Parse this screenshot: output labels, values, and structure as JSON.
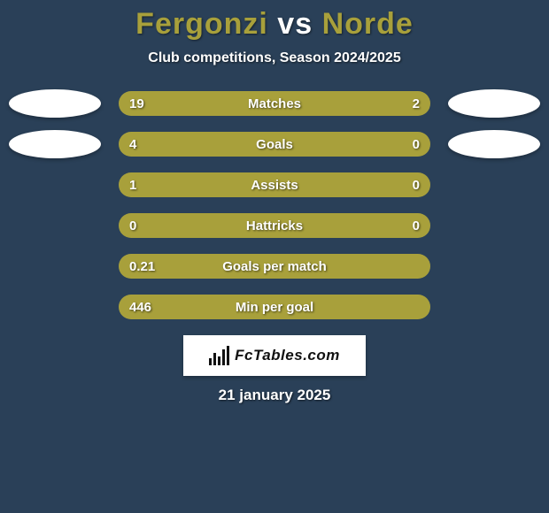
{
  "title": {
    "player1": "Fergonzi",
    "vs": "vs",
    "player2": "Norde",
    "player1_color": "#a8a03b",
    "player2_color": "#a8a03b"
  },
  "subtitle": "Club competitions, Season 2024/2025",
  "background_color": "#2a4058",
  "track_color": "#3a5068",
  "logo_text": "FcTables.com",
  "date": "21 january 2025",
  "stats": [
    {
      "label": "Matches",
      "left_value": "19",
      "right_value": "2",
      "left_pct": 76,
      "right_pct": 24,
      "left_color": "#a8a03b",
      "right_color": "#a8a03b",
      "show_oval": true
    },
    {
      "label": "Goals",
      "left_value": "4",
      "right_value": "0",
      "left_pct": 90,
      "right_pct": 10,
      "left_color": "#a8a03b",
      "right_color": "#a8a03b",
      "show_oval": true
    },
    {
      "label": "Assists",
      "left_value": "1",
      "right_value": "0",
      "left_pct": 80,
      "right_pct": 20,
      "left_color": "#a8a03b",
      "right_color": "#a8a03b",
      "show_oval": false
    },
    {
      "label": "Hattricks",
      "left_value": "0",
      "right_value": "0",
      "left_pct": 50,
      "right_pct": 50,
      "left_color": "#a8a03b",
      "right_color": "#a8a03b",
      "show_oval": false
    },
    {
      "label": "Goals per match",
      "left_value": "0.21",
      "right_value": "",
      "left_pct": 100,
      "right_pct": 0,
      "left_color": "#a8a03b",
      "right_color": "#a8a03b",
      "show_oval": false
    },
    {
      "label": "Min per goal",
      "left_value": "446",
      "right_value": "",
      "left_pct": 100,
      "right_pct": 0,
      "left_color": "#a8a03b",
      "right_color": "#a8a03b",
      "show_oval": false
    }
  ]
}
